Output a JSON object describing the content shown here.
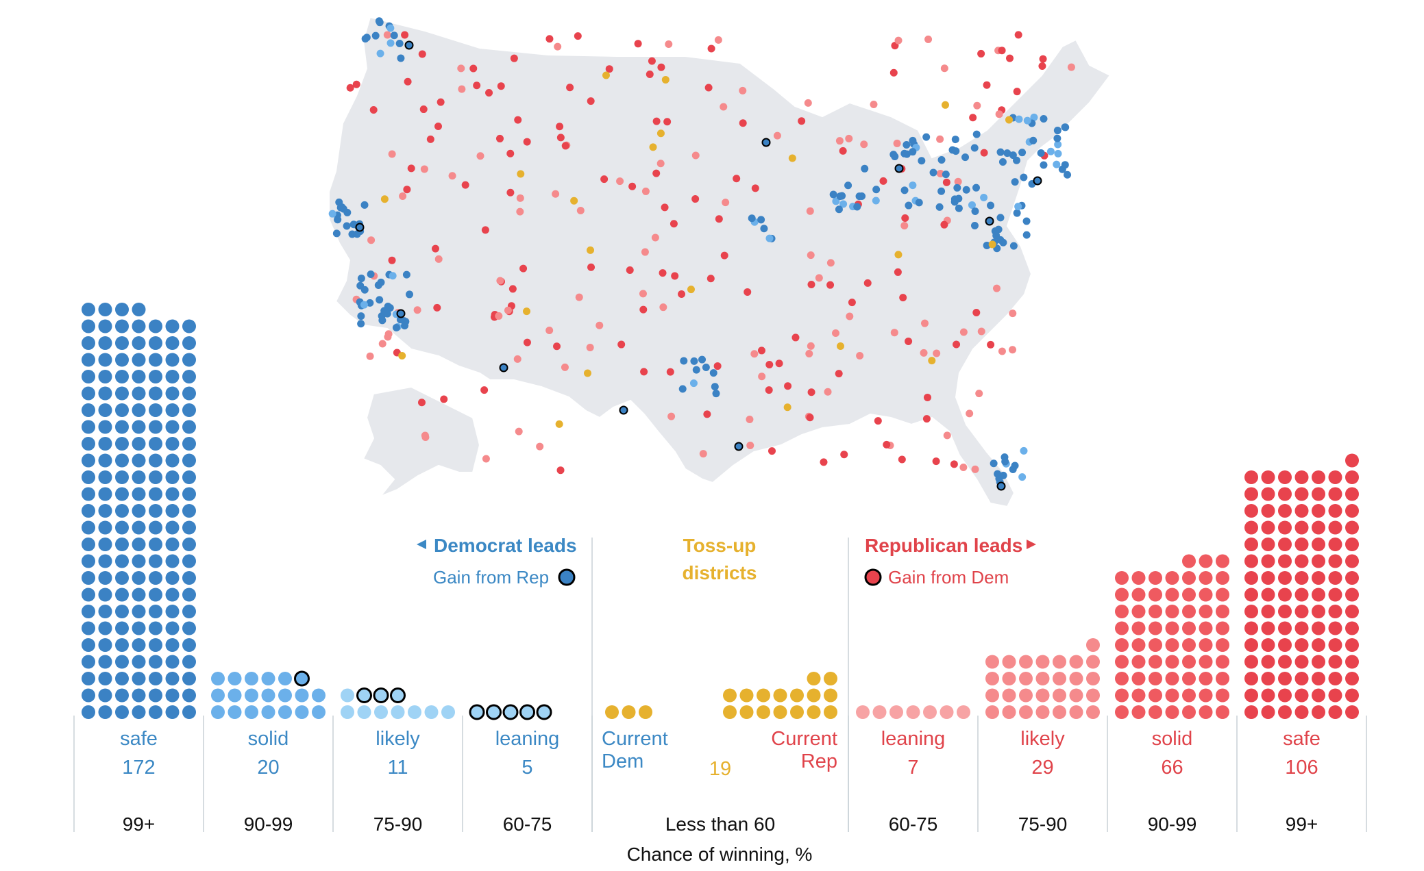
{
  "colors": {
    "dem_safe": "#3b82c4",
    "dem_light": "#6bb0ea",
    "dem_lighter": "#9fd3f5",
    "dem_label": "#3b88c4",
    "tossup": "#e6b12e",
    "rep_safe": "#e8434d",
    "rep_mid": "#ef5a60",
    "rep_light": "#f58a8c",
    "rep_lighter": "#f7a3a4",
    "rep_label": "#e0434a",
    "map_fill": "#e6e8ec",
    "divider": "#c8d0d6"
  },
  "legend": {
    "dem_title": "Democrat leads",
    "dem_gain": "Gain from Rep",
    "tossup_line1": "Toss-up",
    "tossup_line2": "districts",
    "rep_title": "Republican leads",
    "rep_gain": "Gain from Dem"
  },
  "axis_title": "Chance of winning, %",
  "tossup_current_dem_line1": "Current",
  "tossup_current_dem_line2": "Dem",
  "tossup_current_rep_line1": "Current",
  "tossup_current_rep_line2": "Rep",
  "chart_data": {
    "type": "bar",
    "xlabel": "Chance of winning, %",
    "categories": [
      "safe",
      "solid",
      "likely",
      "leaning",
      "Toss-up",
      "leaning",
      "likely",
      "solid",
      "safe"
    ],
    "ranges": [
      "99+",
      "90-99",
      "75-90",
      "60-75",
      "Less than 60",
      "60-75",
      "75-90",
      "90-99",
      "99+"
    ],
    "series": [
      {
        "name": "Democrat leads",
        "values": [
          172,
          20,
          11,
          5,
          0,
          0,
          0,
          0,
          0
        ],
        "gains_from_rep": [
          0,
          1,
          3,
          5,
          0,
          0,
          0,
          0,
          0
        ]
      },
      {
        "name": "Toss-up districts",
        "values": [
          0,
          0,
          0,
          0,
          19,
          0,
          0,
          0,
          0
        ],
        "current_dem": 3,
        "current_rep": 16
      },
      {
        "name": "Republican leads",
        "values": [
          0,
          0,
          0,
          0,
          0,
          7,
          29,
          66,
          106
        ],
        "gains_from_dem": [
          0,
          0,
          0,
          0,
          0,
          0,
          0,
          0,
          0
        ]
      }
    ],
    "columns": [
      {
        "label": "safe",
        "count": "172",
        "range": "99+"
      },
      {
        "label": "solid",
        "count": "20",
        "range": "90-99"
      },
      {
        "label": "likely",
        "count": "11",
        "range": "75-90"
      },
      {
        "label": "leaning",
        "count": "5",
        "range": "60-75"
      },
      {
        "label": "",
        "count": "19",
        "range": "Less than 60"
      },
      {
        "label": "leaning",
        "count": "7",
        "range": "60-75"
      },
      {
        "label": "likely",
        "count": "29",
        "range": "75-90"
      },
      {
        "label": "solid",
        "count": "66",
        "range": "90-99"
      },
      {
        "label": "safe",
        "count": "106",
        "range": "99+"
      }
    ]
  }
}
